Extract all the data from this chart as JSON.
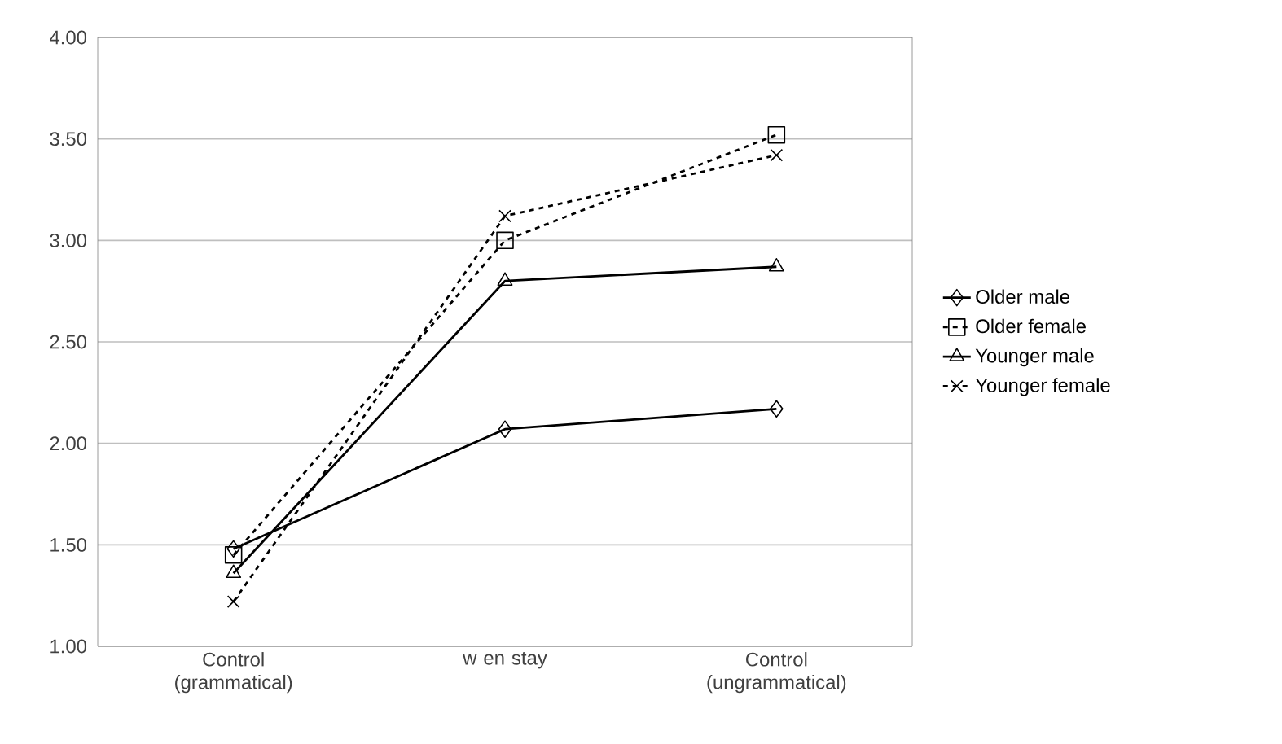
{
  "chart_data": {
    "type": "line",
    "categories": [
      "Control (grammatical)",
      "w en stay",
      "Control (ungrammatical)"
    ],
    "series": [
      {
        "name": "Older male",
        "color": "#000000",
        "values": [
          1.48,
          2.07,
          2.17
        ],
        "marker": "diamond",
        "line_style": "solid"
      },
      {
        "name": "Older female",
        "color": "#000000",
        "values": [
          1.45,
          3.0,
          3.52
        ],
        "marker": "square",
        "line_style": "dashed"
      },
      {
        "name": "Younger male",
        "color": "#000000",
        "values": [
          1.36,
          2.8,
          2.87
        ],
        "marker": "triangle",
        "line_style": "solid"
      },
      {
        "name": "Younger female",
        "color": "#000000",
        "values": [
          1.22,
          3.12,
          3.42
        ],
        "marker": "cross",
        "line_style": "dashed"
      }
    ],
    "ylim": [
      1.0,
      4.0
    ],
    "yticks": [
      {
        "value": 1.0,
        "label": "1.00"
      },
      {
        "value": 1.5,
        "label": "1.50"
      },
      {
        "value": 2.0,
        "label": "2.00"
      },
      {
        "value": 2.5,
        "label": "2.50"
      },
      {
        "value": 3.0,
        "label": "3.00"
      },
      {
        "value": 3.5,
        "label": "3.50"
      },
      {
        "value": 4.0,
        "label": "4.00"
      }
    ],
    "grid": "y",
    "legend": "right"
  }
}
